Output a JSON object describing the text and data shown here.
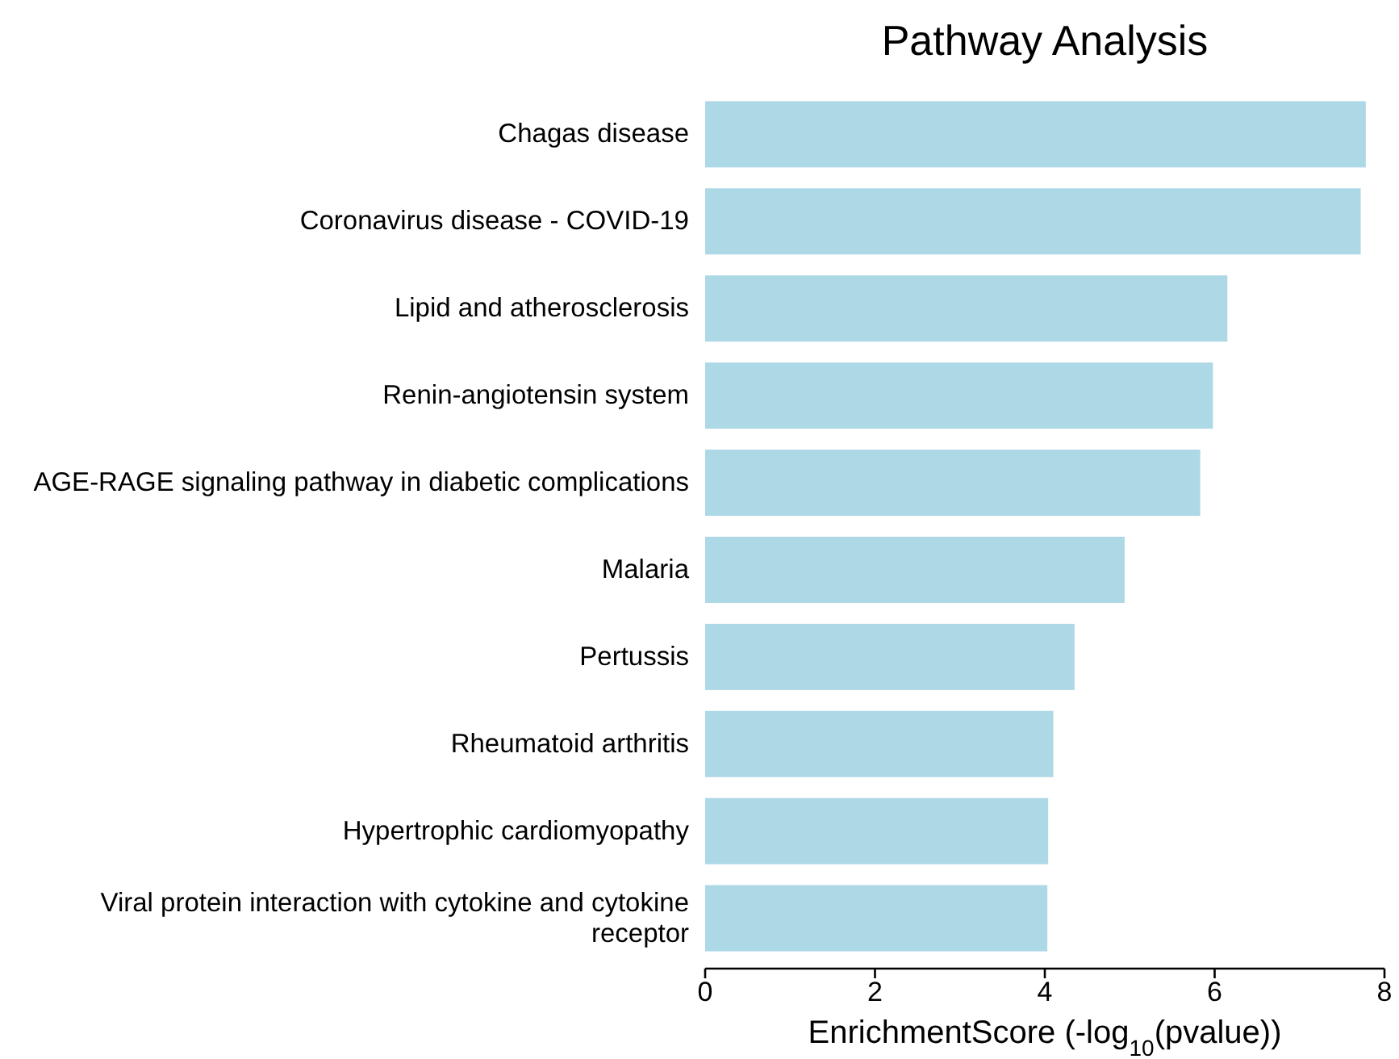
{
  "chart_data": {
    "type": "bar",
    "orientation": "horizontal",
    "title": "Pathway Analysis",
    "xlabel": "EnrichmentScore (-log$_{10}$(pvalue))",
    "categories": [
      "Chagas disease",
      "Coronavirus disease - COVID-19",
      "Lipid and atherosclerosis",
      "Renin-angiotensin system",
      "AGE-RAGE signaling pathway in diabetic complications",
      "Malaria",
      "Pertussis",
      "Rheumatoid arthritis",
      "Hypertrophic cardiomyopathy",
      "Viral protein interaction with cytokine and cytokine receptor"
    ],
    "values": [
      7.78,
      7.72,
      6.15,
      5.98,
      5.83,
      4.94,
      4.35,
      4.1,
      4.04,
      4.03
    ],
    "color": "#add8e6",
    "xlim": [
      0,
      8
    ],
    "xticks": [
      0,
      2,
      4,
      6,
      8
    ],
    "grid": false
  }
}
